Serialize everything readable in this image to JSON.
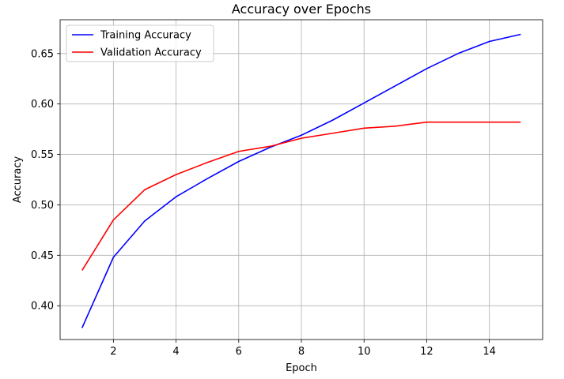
{
  "chart_data": {
    "type": "line",
    "title": "Accuracy over Epochs",
    "xlabel": "Epoch",
    "ylabel": "Accuracy",
    "xlim": [
      0.3,
      15.7
    ],
    "ylim": [
      0.3665,
      0.6835
    ],
    "xticks": [
      2,
      4,
      6,
      8,
      10,
      12,
      14
    ],
    "yticks": [
      0.4,
      0.45,
      0.5,
      0.55,
      0.6,
      0.65
    ],
    "xtick_labels": [
      "2",
      "4",
      "6",
      "8",
      "10",
      "12",
      "14"
    ],
    "ytick_labels": [
      "0.40",
      "0.45",
      "0.50",
      "0.55",
      "0.60",
      "0.65"
    ],
    "grid": true,
    "legend_position": "top-left",
    "x": [
      1,
      2,
      3,
      4,
      5,
      6,
      7,
      8,
      9,
      10,
      11,
      12,
      13,
      14,
      15
    ],
    "series": [
      {
        "name": "Training Accuracy",
        "color": "#0000ff",
        "values": [
          0.378,
          0.448,
          0.484,
          0.508,
          0.526,
          0.543,
          0.557,
          0.569,
          0.584,
          0.601,
          0.618,
          0.635,
          0.65,
          0.662,
          0.669
        ]
      },
      {
        "name": "Validation Accuracy",
        "color": "#ff0000",
        "values": [
          0.435,
          0.485,
          0.515,
          0.53,
          0.542,
          0.553,
          0.558,
          0.566,
          0.571,
          0.576,
          0.578,
          0.582,
          0.582,
          0.582,
          0.582
        ]
      }
    ]
  }
}
